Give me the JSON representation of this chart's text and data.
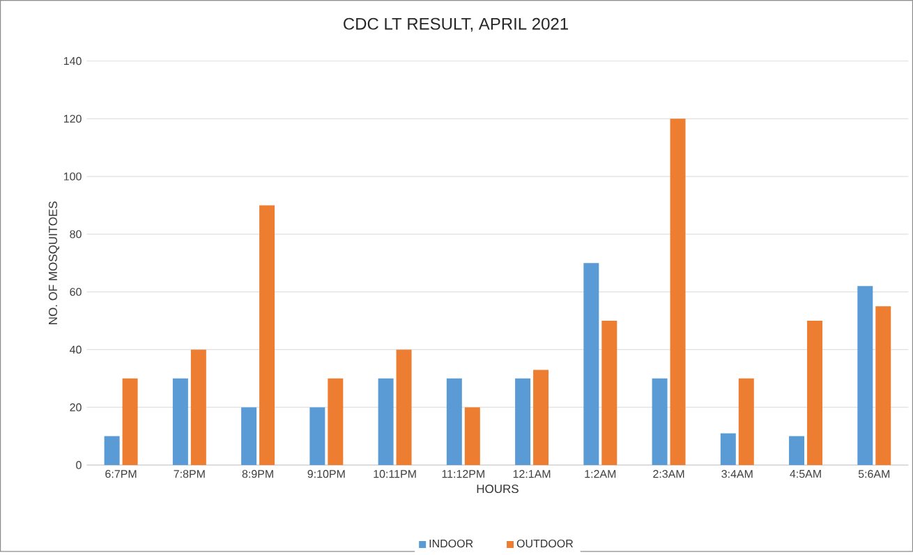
{
  "chart_data": {
    "type": "bar",
    "title": "CDC LT RESULT, APRIL 2021",
    "xlabel": "HOURS",
    "ylabel": "NO. OF MOSQUITOES",
    "categories": [
      "6:7PM",
      "7:8PM",
      "8:9PM",
      "9:10PM",
      "10:11PM",
      "11:12PM",
      "12:1AM",
      "1:2AM",
      "2:3AM",
      "3:4AM",
      "4:5AM",
      "5:6AM"
    ],
    "series": [
      {
        "name": "INDOOR",
        "color": "#5b9bd5",
        "values": [
          10,
          30,
          20,
          20,
          30,
          30,
          30,
          70,
          30,
          11,
          10,
          62
        ]
      },
      {
        "name": "OUTDOOR",
        "color": "#ed7d31",
        "values": [
          30,
          40,
          90,
          30,
          40,
          20,
          33,
          50,
          120,
          30,
          50,
          55
        ]
      }
    ],
    "ylim": [
      0,
      140
    ],
    "yticks": [
      0,
      20,
      40,
      60,
      80,
      100,
      120,
      140
    ],
    "grid": "y",
    "legend": "bottom"
  }
}
